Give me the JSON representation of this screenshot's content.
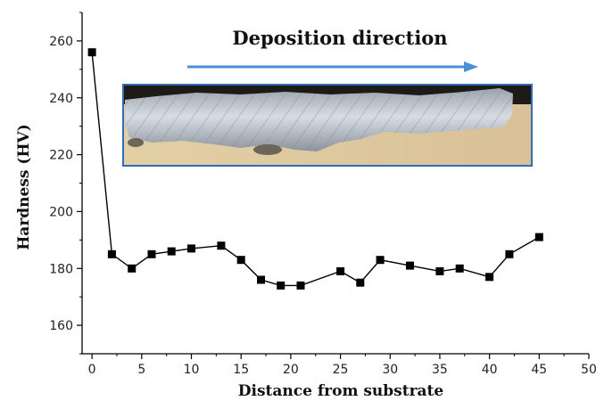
{
  "chart_data": {
    "type": "line",
    "title": "",
    "xlabel": "Distance from substrate",
    "ylabel": "Hardness (HV)",
    "xlim": [
      -1,
      50
    ],
    "ylim": [
      150,
      270
    ],
    "xticks": [
      0,
      5,
      10,
      15,
      20,
      25,
      30,
      35,
      40,
      45,
      50
    ],
    "yticks": [
      160,
      180,
      200,
      220,
      240,
      260
    ],
    "marker": "square",
    "line_color": "#000000",
    "grid": false,
    "legend": "none",
    "series": [
      {
        "x": [
          0,
          2,
          4,
          6,
          8,
          10,
          13,
          15,
          17,
          19,
          21,
          25,
          27,
          29,
          32,
          35,
          37,
          40,
          42,
          45
        ],
        "y": [
          256,
          185,
          180,
          185,
          186,
          187,
          188,
          183,
          176,
          174,
          174,
          179,
          175,
          183,
          181,
          179,
          180,
          177,
          185,
          191
        ]
      }
    ],
    "annotations": {
      "direction_label": "Deposition direction",
      "arrow_color": "#4a90d9",
      "inset_image": "photo of deposited metal bead on substrate",
      "inset_border_color": "#2f6db5"
    }
  }
}
